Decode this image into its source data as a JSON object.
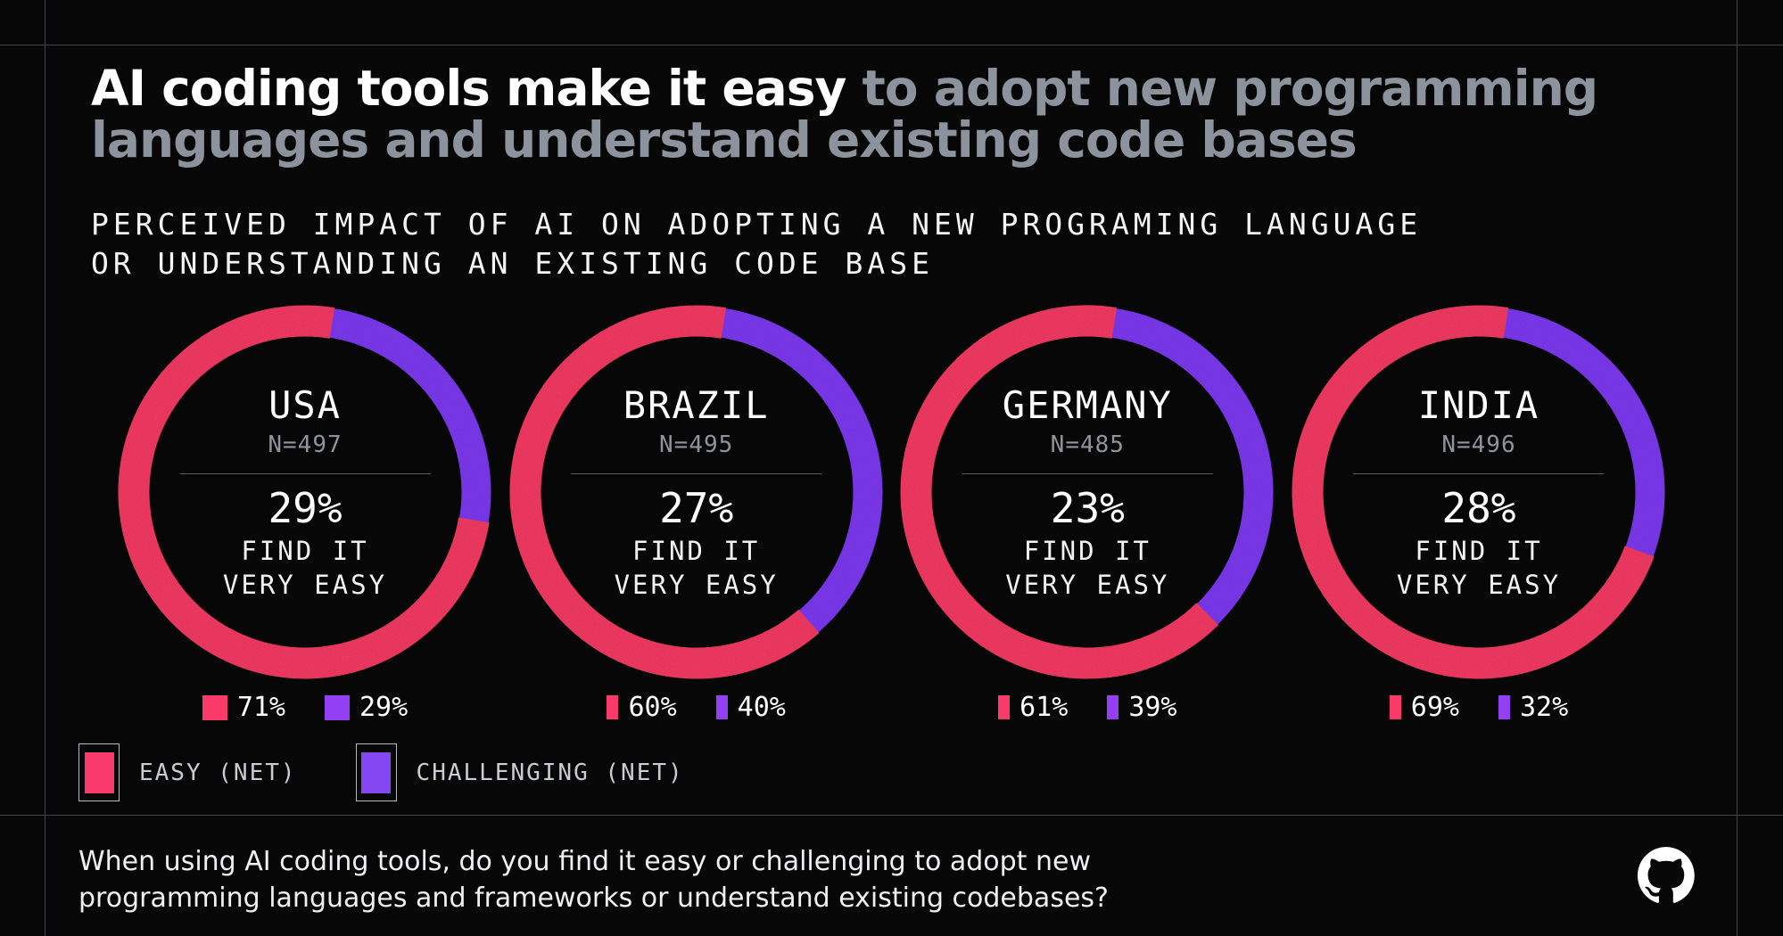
{
  "title": {
    "highlight": "AI coding tools make it easy",
    "rest_line1": " to adopt new programming",
    "line2": "languages and understand existing code bases"
  },
  "subtitle": {
    "line1": "PERCEIVED IMPACT OF AI ON ADOPTING A NEW PROGRAMING LANGUAGE",
    "line2": "OR UNDERSTANDING AN EXISTING CODE BASE"
  },
  "chart_data": {
    "type": "donut",
    "title": "Perceived impact of AI on adopting a new programing language or understanding an existing code base",
    "units": "%",
    "legend": [
      "EASY (NET)",
      "CHALLENGING (NET)"
    ],
    "legend_position": "bottom-left",
    "groups": [
      {
        "country": "USA",
        "n": 497,
        "easy_net": 71,
        "challenging_net": 29,
        "find_it_very_easy": 29
      },
      {
        "country": "BRAZIL",
        "n": 495,
        "easy_net": 60,
        "challenging_net": 40,
        "find_it_very_easy": 27
      },
      {
        "country": "GERMANY",
        "n": 485,
        "easy_net": 61,
        "challenging_net": 39,
        "find_it_very_easy": 23
      },
      {
        "country": "INDIA",
        "n": 496,
        "easy_net": 69,
        "challenging_net": 32,
        "find_it_very_easy": 28
      }
    ]
  },
  "countries": [
    {
      "name": "USA",
      "n_label": "N=497",
      "center_pct": "29%",
      "find_line1": "FIND IT",
      "find_line2": "VERY EASY",
      "easy_label": "71%",
      "challenging_label": "29%"
    },
    {
      "name": "BRAZIL",
      "n_label": "N=495",
      "center_pct": "27%",
      "find_line1": "FIND IT",
      "find_line2": "VERY EASY",
      "easy_label": "60%",
      "challenging_label": "40%"
    },
    {
      "name": "GERMANY",
      "n_label": "N=485",
      "center_pct": "23%",
      "find_line1": "FIND IT",
      "find_line2": "VERY EASY",
      "easy_label": "61%",
      "challenging_label": "39%"
    },
    {
      "name": "INDIA",
      "n_label": "N=496",
      "center_pct": "28%",
      "find_line1": "FIND IT",
      "find_line2": "VERY EASY",
      "easy_label": "69%",
      "challenging_label": "32%"
    }
  ],
  "legend": {
    "easy_label": "EASY (NET)",
    "challenging_label": "CHALLENGING (NET)"
  },
  "footer": {
    "question_line1": "When using AI coding tools, do you find it easy or challenging to adopt new",
    "question_line2": "programming languages and frameworks or understand existing codebases?"
  },
  "colors": {
    "background": "#070708",
    "easy": "#F73B64",
    "challenging": "#7E3AF2",
    "swatch_easy": "#FA3A6B",
    "swatch_challenging": "#9340F4",
    "accent_gray": "#8D939D"
  }
}
